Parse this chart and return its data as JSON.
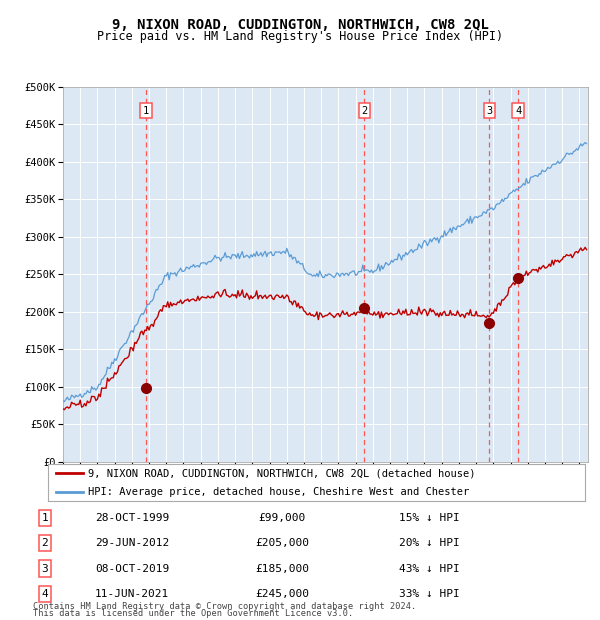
{
  "title": "9, NIXON ROAD, CUDDINGTON, NORTHWICH, CW8 2QL",
  "subtitle": "Price paid vs. HM Land Registry's House Price Index (HPI)",
  "title_fontsize": 10,
  "subtitle_fontsize": 8.5,
  "ylabel_ticks": [
    "£0",
    "£50K",
    "£100K",
    "£150K",
    "£200K",
    "£250K",
    "£300K",
    "£350K",
    "£400K",
    "£450K",
    "£500K"
  ],
  "ytick_values": [
    0,
    50000,
    100000,
    150000,
    200000,
    250000,
    300000,
    350000,
    400000,
    450000,
    500000
  ],
  "ylim": [
    0,
    500000
  ],
  "xlim_start": 1995.0,
  "xlim_end": 2025.5,
  "background_color": "#dce9f5",
  "hpi_color": "#5b9bd5",
  "price_color": "#c00000",
  "sale_marker_color": "#8b0000",
  "vline_color": "#ff5555",
  "sales": [
    {
      "num": 1,
      "date": "28-OCT-1999",
      "price": 99000,
      "year": 1999.83,
      "pct": "15%",
      "dir": "↓"
    },
    {
      "num": 2,
      "date": "29-JUN-2012",
      "price": 205000,
      "year": 2012.5,
      "pct": "20%",
      "dir": "↓"
    },
    {
      "num": 3,
      "date": "08-OCT-2019",
      "price": 185000,
      "year": 2019.77,
      "pct": "43%",
      "dir": "↓"
    },
    {
      "num": 4,
      "date": "11-JUN-2021",
      "price": 245000,
      "year": 2021.44,
      "pct": "33%",
      "dir": "↓"
    }
  ],
  "footer_line1": "Contains HM Land Registry data © Crown copyright and database right 2024.",
  "footer_line2": "This data is licensed under the Open Government Licence v3.0.",
  "legend_label_price": "9, NIXON ROAD, CUDDINGTON, NORTHWICH, CW8 2QL (detached house)",
  "legend_label_hpi": "HPI: Average price, detached house, Cheshire West and Chester"
}
